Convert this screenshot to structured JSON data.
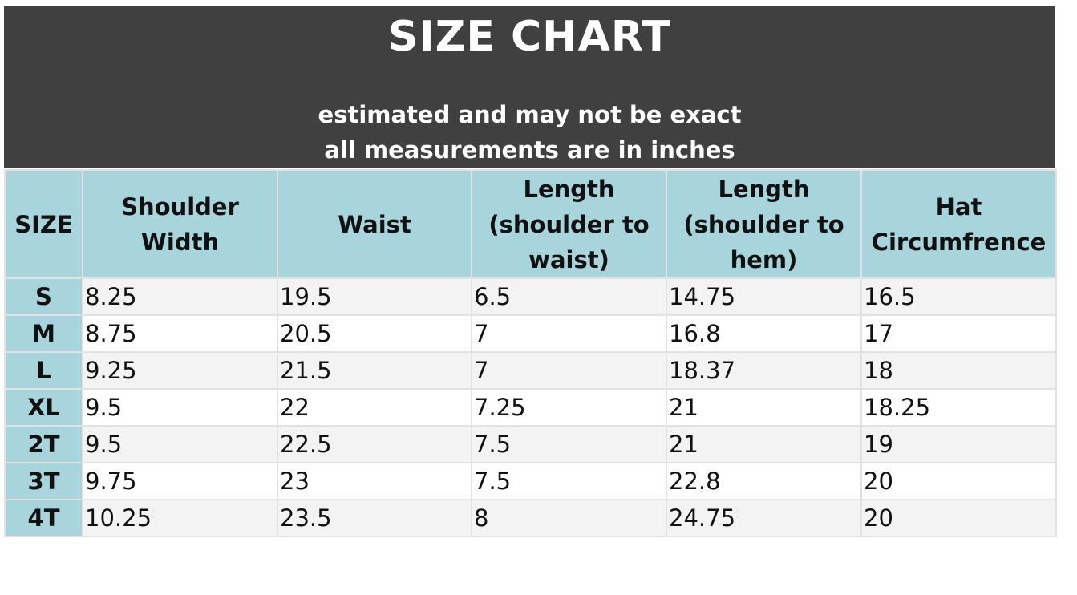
{
  "header": {
    "title": "SIZE CHART",
    "subtitle_line1": "estimated and may not be exact",
    "subtitle_line2": "all measurements are in inches"
  },
  "columns": [
    "SIZE",
    "Shoulder Width",
    "Waist",
    "Length (shoulder to waist)",
    "Length (shoulder to hem)",
    "Hat Circumfrence"
  ],
  "rows": [
    [
      "S",
      "8.25",
      "19.5",
      "6.5",
      "14.75",
      "16.5"
    ],
    [
      "M",
      "8.75",
      "20.5",
      "7",
      "16.8",
      "17"
    ],
    [
      "L",
      "9.25",
      "21.5",
      "7",
      "18.37",
      "18"
    ],
    [
      "XL",
      "9.5",
      "22",
      "7.25",
      "21",
      "18.25"
    ],
    [
      "2T",
      "9.5",
      "22.5",
      "7.5",
      "21",
      "19"
    ],
    [
      "3T",
      "9.75",
      "23",
      "7.5",
      "22.8",
      "20"
    ],
    [
      "4T",
      "10.25",
      "23.5",
      "8",
      "24.75",
      "20"
    ]
  ],
  "colors": {
    "banner": "#404040",
    "header_cells": "#a8d4dc",
    "stripe": "#f3f3f3"
  }
}
